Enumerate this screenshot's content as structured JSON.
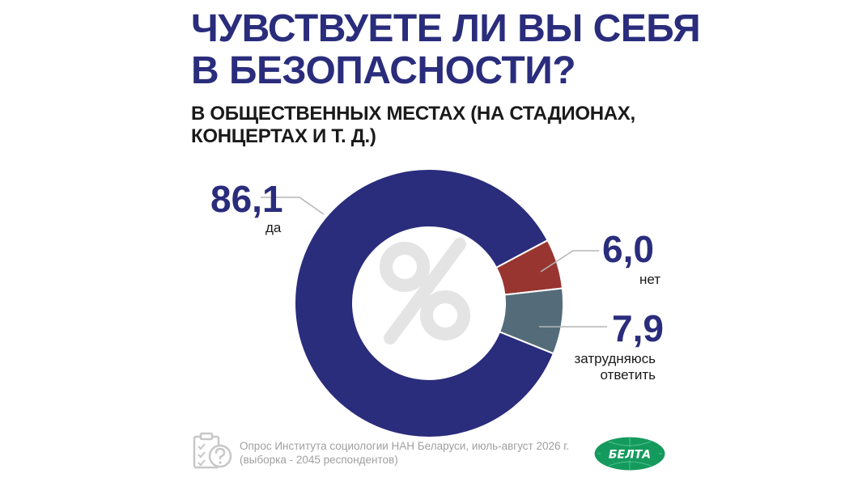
{
  "header": {
    "title_line1": "ЧУВСТВУЕТЕ ЛИ ВЫ СЕБЯ",
    "title_line2": "В БЕЗОПАСНОСТИ?",
    "subtitle_line1": "В ОБЩЕСТВЕННЫХ МЕСТАХ (НА СТАДИОНАХ,",
    "subtitle_line2": "КОНЦЕРТАХ И Т. Д.)"
  },
  "chart_data": {
    "type": "pie",
    "unit": "%",
    "slices": [
      {
        "label": "да",
        "value": 86.1,
        "value_label": "86,1",
        "color": "#2a2c7c"
      },
      {
        "label": "нет",
        "value": 6.0,
        "value_label": "6,0",
        "color": "#993530"
      },
      {
        "label_line1": "затрудняюсь",
        "label_line2": "ответить",
        "value": 7.9,
        "value_label": "7,9",
        "color": "#546c7a"
      }
    ]
  },
  "center_icon": "percent-icon",
  "footer": {
    "source_line1": "Опрос Института социологии НАН Беларуси, июль-август 2026 г.",
    "source_line2": "(выборка - 2045 респондентов)",
    "source_icon": "clipboard-question-icon",
    "logo_text": "БЕЛТА",
    "logo_color": "#159a5d"
  }
}
